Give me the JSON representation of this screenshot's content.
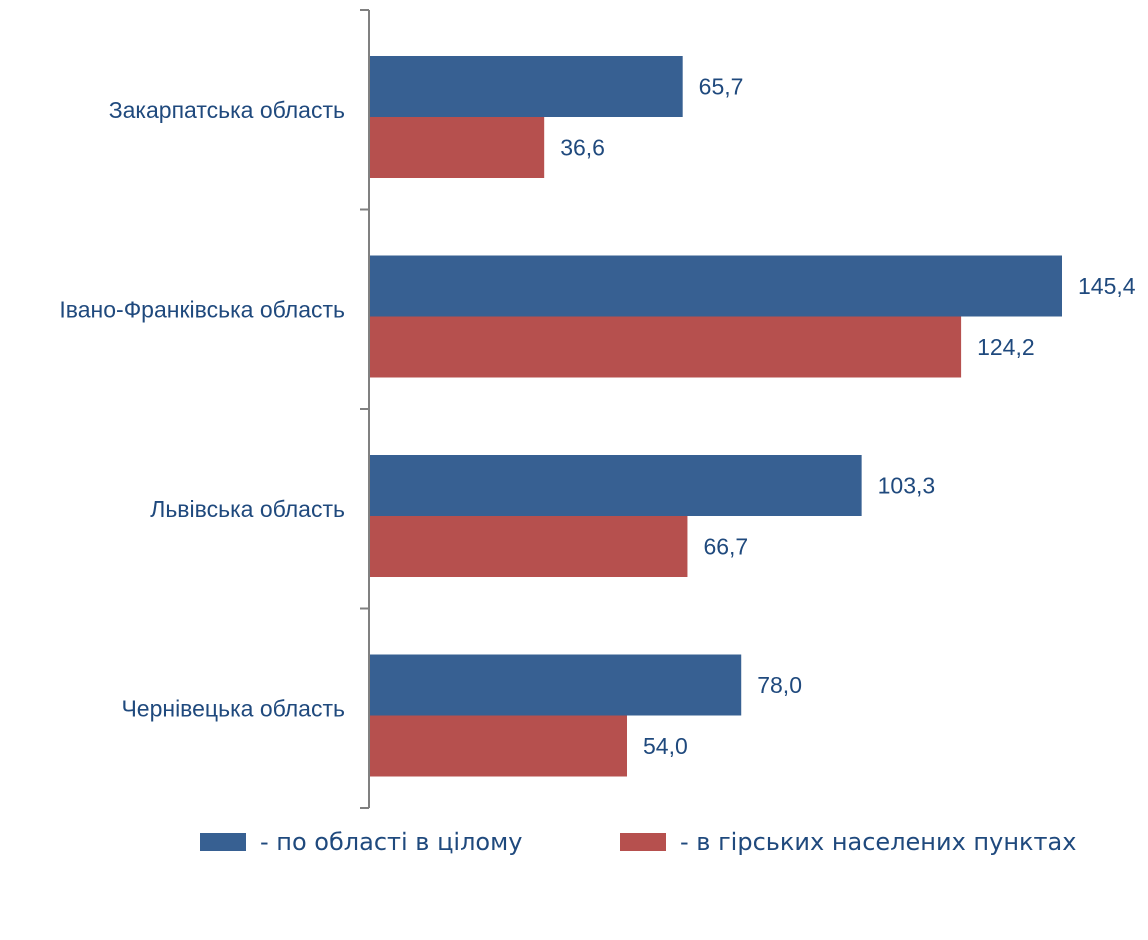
{
  "chart_data": {
    "type": "bar",
    "orientation": "horizontal",
    "categories": [
      "Закарпатська область",
      "Івано-Франківська область",
      "Львівська область",
      "Чернівецька область"
    ],
    "series": [
      {
        "name": "- по області в цілому",
        "color": "#376092",
        "values": [
          65.7,
          145.4,
          103.3,
          78.0
        ],
        "labels": [
          "65,7",
          "145,4",
          "103,3",
          "78,0"
        ]
      },
      {
        "name": "- в гірських населених пунктах",
        "color": "#B6504E",
        "values": [
          36.6,
          124.2,
          66.7,
          54.0
        ],
        "labels": [
          "36,6",
          "124,2",
          "66,7",
          "54,0"
        ]
      }
    ],
    "xlim": [
      0,
      145.4
    ],
    "grid": false,
    "legend_position": "bottom",
    "label_color": "#1F497D",
    "axis_color": "#808080"
  }
}
